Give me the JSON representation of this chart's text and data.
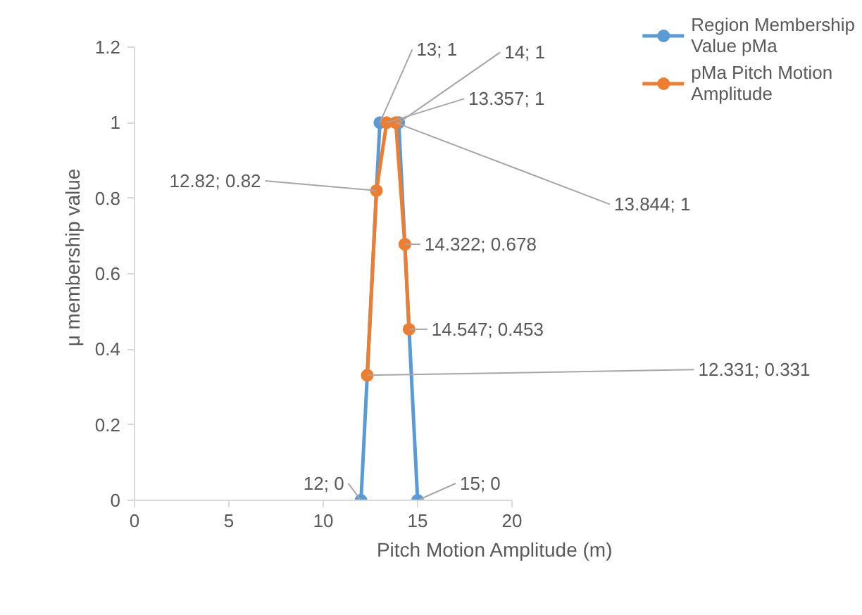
{
  "chart_data": {
    "type": "line",
    "xlabel": "Pitch Motion Amplitude (m)",
    "ylabel": "μ membership value",
    "xlim": [
      0,
      20
    ],
    "xticks": [
      0,
      5,
      10,
      15,
      20
    ],
    "ylim": [
      0,
      1.2
    ],
    "yticks": [
      0,
      0.2,
      0.4,
      0.6,
      0.8,
      1,
      1.2
    ],
    "grid": false,
    "legend": "right",
    "marker": "circle",
    "line_style": "solid",
    "series": [
      {
        "name": "Region Membership Value pMa",
        "color": "#5b9bd5",
        "x": [
          12,
          13,
          14,
          15
        ],
        "values": [
          0,
          1,
          1,
          0
        ],
        "value_labels": [
          "12; 0",
          "13; 1",
          "14; 1",
          "15; 0"
        ]
      },
      {
        "name": "pMa Pitch Motion Amplitude",
        "color": "#ed7d31",
        "x": [
          12.331,
          12.82,
          13.357,
          13.844,
          14.322,
          14.547
        ],
        "values": [
          0.331,
          0.82,
          1,
          1,
          0.678,
          0.453
        ],
        "value_labels": [
          "12.331; 0.331",
          "12.82; 0.82",
          "13.357; 1",
          "13.844; 1",
          "14.322; 0.678",
          "14.547; 0.453"
        ]
      }
    ]
  }
}
